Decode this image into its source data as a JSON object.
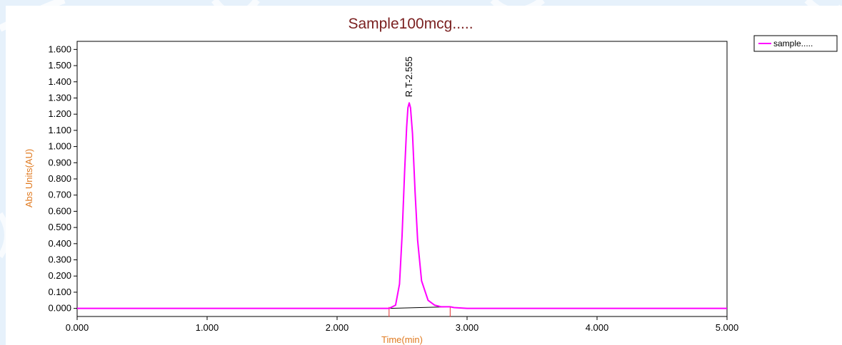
{
  "chart_data": {
    "type": "line",
    "title": "Sample100mcg.....",
    "xlabel": "Time(min)",
    "ylabel": "Abs Units(AU)",
    "xlim": [
      0,
      5
    ],
    "ylim": [
      -0.05,
      1.65
    ],
    "x_ticks": [
      "0.000",
      "1.000",
      "2.000",
      "3.000",
      "4.000",
      "5.000"
    ],
    "x_tick_values": [
      0,
      1,
      2,
      3,
      4,
      5
    ],
    "y_ticks": [
      "0.000",
      "0.100",
      "0.200",
      "0.300",
      "0.400",
      "0.500",
      "0.600",
      "0.700",
      "0.800",
      "0.900",
      "1.000",
      "1.100",
      "1.200",
      "1.300",
      "1.400",
      "1.500",
      "1.600"
    ],
    "y_tick_values": [
      0,
      0.1,
      0.2,
      0.3,
      0.4,
      0.5,
      0.6,
      0.7,
      0.8,
      0.9,
      1.0,
      1.1,
      1.2,
      1.3,
      1.4,
      1.5,
      1.6
    ],
    "grid": false,
    "legend_position": "top-right",
    "series": [
      {
        "name": "sample.....",
        "color": "#ff00ff",
        "x": [
          0,
          2.4,
          2.45,
          2.48,
          2.5,
          2.52,
          2.535,
          2.545,
          2.555,
          2.565,
          2.58,
          2.6,
          2.62,
          2.65,
          2.7,
          2.75,
          2.8,
          2.87,
          2.9,
          3.0,
          5.0
        ],
        "y": [
          0,
          0,
          0.02,
          0.15,
          0.45,
          0.85,
          1.12,
          1.24,
          1.27,
          1.24,
          1.08,
          0.72,
          0.42,
          0.17,
          0.05,
          0.02,
          0.01,
          0.01,
          0.005,
          0,
          0
        ]
      }
    ],
    "baseline": {
      "color": "#000000",
      "x": [
        2.4,
        2.87
      ],
      "y": [
        0,
        0.01
      ]
    },
    "integration_markers": {
      "color": "#e03030",
      "x": [
        2.4,
        2.87
      ]
    },
    "peak_annotation": {
      "text": "R.T-2.555",
      "x": 2.555,
      "y": 1.27
    }
  }
}
